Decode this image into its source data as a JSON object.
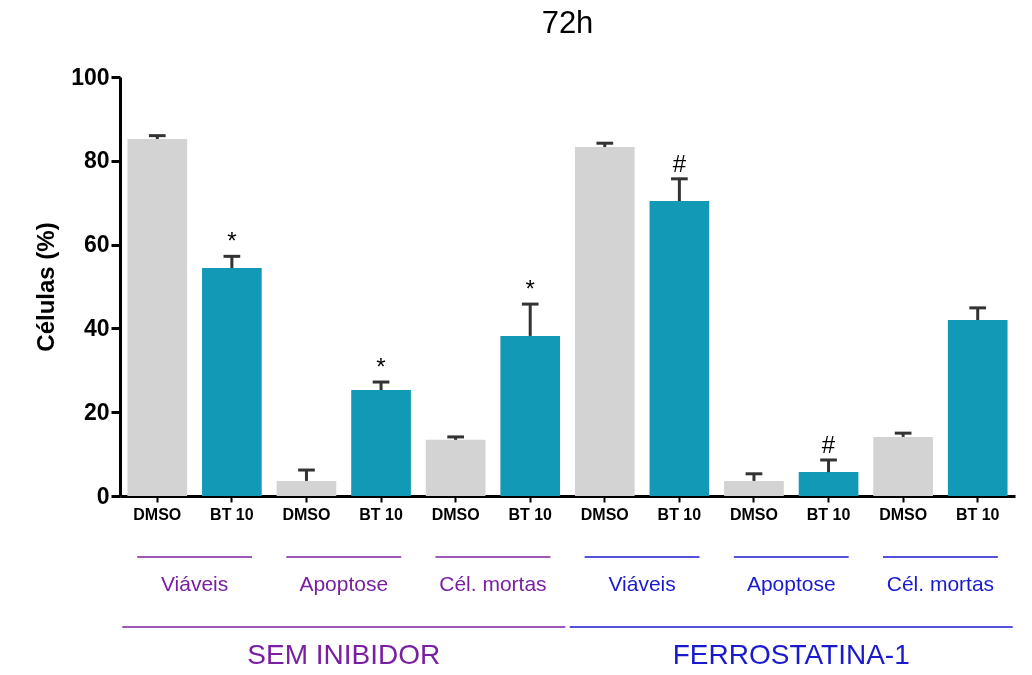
{
  "chart_data": {
    "type": "bar",
    "title": "72h",
    "ylabel": "Células (%)",
    "categories": [
      "DMSO",
      "BT 10",
      "DMSO",
      "BT 10",
      "DMSO",
      "BT 10",
      "DMSO",
      "BT 10",
      "DMSO",
      "BT 10",
      "DMSO",
      "BT 10"
    ],
    "values": [
      85.2,
      54.4,
      3.6,
      25.3,
      13.4,
      38.2,
      83.3,
      70.4,
      3.6,
      5.7,
      14.1,
      42.0
    ],
    "colors": [
      "#d3d3d3",
      "#1199b5",
      "#d3d3d3",
      "#1199b5",
      "#d3d3d3",
      "#1199b5",
      "#d3d3d3",
      "#1199b5",
      "#d3d3d3",
      "#1199b5",
      "#d3d3d3",
      "#1199b5"
    ],
    "errors": [
      [
        85.2,
        86.0
      ],
      [
        54.4,
        57.2
      ],
      [
        3.6,
        6.2
      ],
      [
        25.3,
        27.2
      ],
      [
        13.4,
        14.1
      ],
      [
        38.2,
        45.8
      ],
      [
        83.3,
        84.2
      ],
      [
        70.4,
        75.7
      ],
      [
        3.6,
        5.3
      ],
      [
        5.7,
        8.6
      ],
      [
        14.1,
        15.0
      ],
      [
        42.0,
        44.9
      ]
    ],
    "value_labels": [
      null,
      "*",
      null,
      "*",
      null,
      "*",
      null,
      "#",
      null,
      "#",
      null,
      null
    ],
    "ylim": [
      0,
      100
    ],
    "yticks": [
      0,
      20,
      40,
      60,
      80,
      100
    ],
    "grid": false,
    "annotations": [
      "Viáveis",
      "Apoptose",
      "Cél. mortas",
      "Viáveis",
      "Apoptose",
      "Cél. mortas",
      "SEM INIBIDOR",
      "FERROSTATINA-1"
    ]
  }
}
